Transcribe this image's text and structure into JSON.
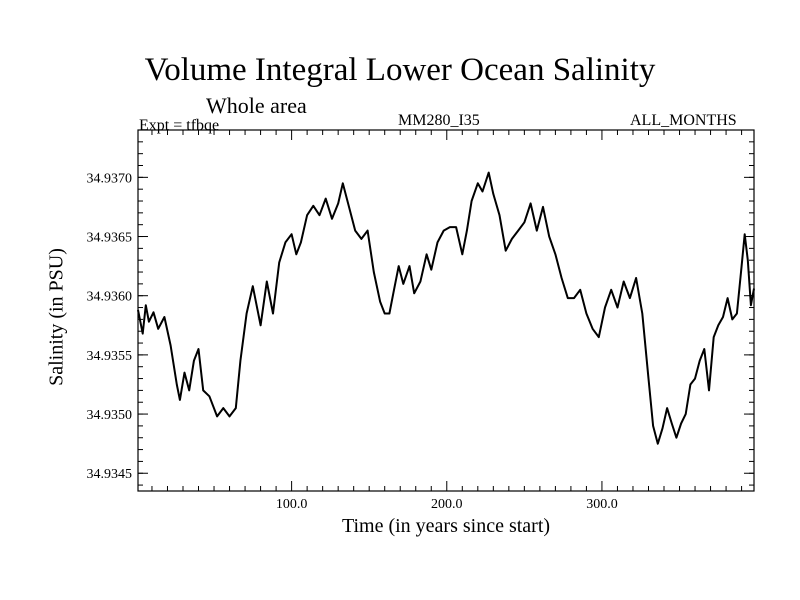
{
  "chart_data": {
    "type": "line",
    "title": "Volume Integral Lower Ocean Salinity",
    "subtitle": "Whole area",
    "header_left": "Expt = tfbqe",
    "header_center": "MM280_I35",
    "header_right": "ALL_MONTHS",
    "xlabel": "Time (in years since start)",
    "ylabel": "Salinity (in PSU)",
    "xlim": [
      1,
      398
    ],
    "ylim": [
      34.93435,
      34.9374
    ],
    "xticks": [
      {
        "value": 100,
        "label": "100.0"
      },
      {
        "value": 200,
        "label": "200.0"
      },
      {
        "value": 300,
        "label": "300.0"
      }
    ],
    "yticks": [
      {
        "value": 34.9345,
        "label": "34.9345"
      },
      {
        "value": 34.935,
        "label": "34.9350"
      },
      {
        "value": 34.9355,
        "label": "34.9355"
      },
      {
        "value": 34.936,
        "label": "34.9360"
      },
      {
        "value": 34.9365,
        "label": "34.9365"
      },
      {
        "value": 34.937,
        "label": "34.9370"
      }
    ],
    "grid": false,
    "series": [
      {
        "color": "#000000",
        "x": [
          1,
          4,
          6,
          8,
          11,
          14,
          18,
          22,
          26,
          28,
          31,
          34,
          37,
          40,
          43,
          47,
          52,
          56,
          60,
          64,
          67,
          71,
          75,
          80,
          84,
          88,
          92,
          96,
          100,
          103,
          106,
          110,
          114,
          118,
          122,
          126,
          130,
          133,
          137,
          141,
          145,
          149,
          153,
          157,
          160,
          163,
          166,
          169,
          172,
          176,
          179,
          183,
          187,
          190,
          194,
          198,
          202,
          206,
          210,
          213,
          216,
          220,
          223,
          227,
          230,
          234,
          238,
          242,
          246,
          250,
          254,
          258,
          262,
          266,
          270,
          274,
          278,
          282,
          286,
          290,
          294,
          298,
          302,
          306,
          310,
          314,
          318,
          322,
          326,
          330,
          333,
          336,
          339,
          342,
          345,
          348,
          351,
          354,
          357,
          360,
          363,
          366,
          369,
          372,
          375,
          378,
          381,
          384,
          387,
          390,
          392,
          394,
          396,
          398
        ],
        "y": [
          34.93588,
          34.93568,
          34.93592,
          34.93578,
          34.93586,
          34.93572,
          34.93582,
          34.93558,
          34.93525,
          34.93512,
          34.93535,
          34.9352,
          34.93545,
          34.93555,
          34.9352,
          34.93515,
          34.93498,
          34.93505,
          34.93498,
          34.93505,
          34.93545,
          34.93585,
          34.93608,
          34.93575,
          34.93612,
          34.93585,
          34.93628,
          34.93645,
          34.93652,
          34.93635,
          34.93645,
          34.93668,
          34.93676,
          34.93668,
          34.93682,
          34.93665,
          34.93678,
          34.93695,
          34.93675,
          34.93655,
          34.93648,
          34.93655,
          34.9362,
          34.93595,
          34.93585,
          34.93585,
          34.93605,
          34.93625,
          34.9361,
          34.93625,
          34.93602,
          34.93612,
          34.93635,
          34.93622,
          34.93645,
          34.93655,
          34.93658,
          34.93658,
          34.93635,
          34.93655,
          34.9368,
          34.93695,
          34.93688,
          34.93704,
          34.93686,
          34.93668,
          34.93638,
          34.93648,
          34.93655,
          34.93662,
          34.93678,
          34.93655,
          34.93675,
          34.9365,
          34.93635,
          34.93615,
          34.93598,
          34.93598,
          34.93605,
          34.93585,
          34.93572,
          34.93565,
          34.9359,
          34.93605,
          34.9359,
          34.93612,
          34.93598,
          34.93615,
          34.93585,
          34.9353,
          34.9349,
          34.93475,
          34.93488,
          34.93505,
          34.93492,
          34.9348,
          34.93492,
          34.935,
          34.93525,
          34.9353,
          34.93545,
          34.93555,
          34.9352,
          34.93565,
          34.93575,
          34.93582,
          34.93598,
          34.9358,
          34.93585,
          34.93625,
          34.93652,
          34.9363,
          34.93592,
          34.93606
        ]
      }
    ]
  }
}
